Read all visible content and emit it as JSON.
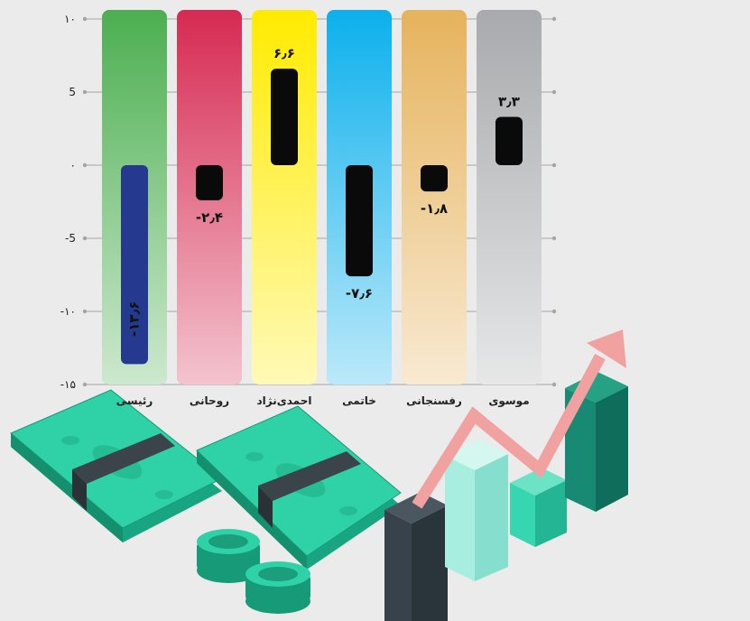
{
  "chart_data": {
    "type": "bar",
    "categories": [
      "رئیسی",
      "روحانی",
      "احمدی‌نژاد",
      "خاتمی",
      "رفسنجانی",
      "موسوی"
    ],
    "values": [
      -13.6,
      -2.4,
      6.6,
      -7.6,
      -1.8,
      3.3
    ],
    "value_labels": [
      "-۱۳٫۶",
      "-۲٫۴",
      "۶٫۶",
      "-۷٫۶",
      "-۱٫۸",
      "۳٫۳"
    ],
    "column_colors": [
      "#4caf50",
      "#d62a52",
      "#ffeb00",
      "#0cb0ec",
      "#e6b35d",
      "#a9aaad"
    ],
    "bar_colors": [
      "#253a8f",
      "#0a0a0a",
      "#0a0a0a",
      "#0a0a0a",
      "#0a0a0a",
      "#0a0a0a"
    ],
    "ylim": [
      -15,
      10
    ],
    "yticks": [
      10,
      5,
      0,
      -5,
      -10,
      -15
    ],
    "ytick_labels": [
      "۱۰",
      "5",
      "۰",
      "-5",
      "-۱۰",
      "-۱۵"
    ],
    "grid": true,
    "xlabel": "",
    "ylabel": "",
    "title": ""
  },
  "illustration": {
    "icons": [
      "money-stack-icon",
      "coin-stack-icon",
      "bar-chart-icon",
      "trend-arrow-icon"
    ],
    "colors": {
      "money": "#2fd1a6",
      "money_dark": "#18a582",
      "band": "#3b444b",
      "arrow": "#f1a1a0",
      "bar_dark": "#37424a",
      "bar_light": "#a7eee0",
      "bar_mint": "#35d6b0",
      "bar_teal": "#188a73"
    }
  }
}
